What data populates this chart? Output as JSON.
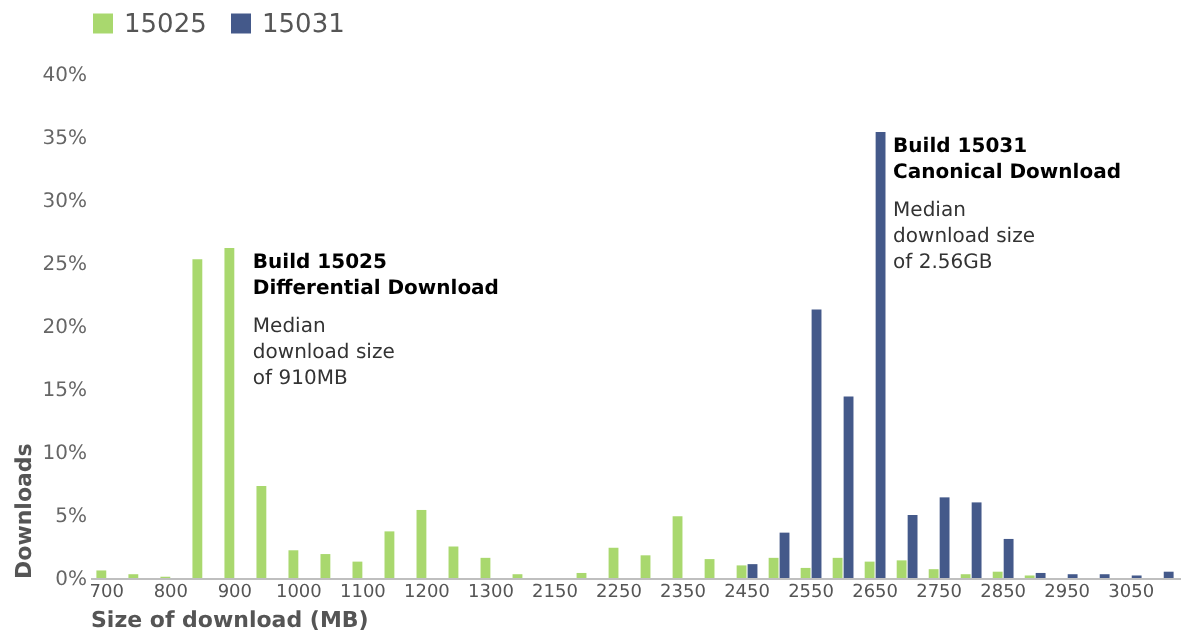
{
  "chart_data": {
    "type": "bar",
    "categories": [
      "700",
      null,
      "800",
      null,
      "900",
      null,
      "1000",
      null,
      "1100",
      null,
      "1200",
      null,
      "1300",
      null,
      "2150",
      null,
      "2250",
      null,
      "2350",
      null,
      "2450",
      null,
      "2550",
      null,
      "2650",
      null,
      "2750",
      null,
      "2850",
      null,
      "2950",
      null,
      "3050",
      null
    ],
    "series": [
      {
        "name": "15025",
        "color": "#a9d86e",
        "values": [
          0.6,
          0.3,
          0.1,
          25.3,
          26.2,
          7.3,
          2.2,
          1.9,
          1.3,
          3.7,
          5.4,
          2.5,
          1.6,
          0.3,
          0,
          0.4,
          2.4,
          1.8,
          4.9,
          1.5,
          1.0,
          1.6,
          0.8,
          1.6,
          1.3,
          1.4,
          0.7,
          0.3,
          0.5,
          0.2,
          0,
          0,
          0,
          0
        ]
      },
      {
        "name": "15031",
        "color": "#44598a",
        "values": [
          0,
          0,
          0,
          0,
          0,
          0,
          0,
          0,
          0,
          0,
          0,
          0,
          0,
          0,
          0,
          0,
          0,
          0,
          0,
          0,
          1.1,
          3.6,
          21.3,
          14.4,
          35.4,
          5.0,
          6.4,
          6.0,
          3.1,
          0.4,
          0.3,
          0.3,
          0.2,
          0.5
        ]
      }
    ],
    "ylim": [
      0,
      40
    ],
    "yticks": [
      {
        "value": 0,
        "label": "0%"
      },
      {
        "value": 5,
        "label": "5%"
      },
      {
        "value": 10,
        "label": "10%"
      },
      {
        "value": 15,
        "label": "15%"
      },
      {
        "value": 20,
        "label": "20%"
      },
      {
        "value": 25,
        "label": "25%"
      },
      {
        "value": 30,
        "label": "30%"
      },
      {
        "value": 35,
        "label": "35%"
      },
      {
        "value": 40,
        "label": "40%"
      }
    ],
    "xlabel": "Size of download (MB)",
    "ylabel": "Downloads",
    "annotations": [
      {
        "text": "Build 15025\nDifferential Download",
        "x": "900",
        "y": 26.2
      },
      {
        "text": "Median\ndownload size\nof 910MB",
        "x": "900",
        "y": 20.8
      },
      {
        "text": "Build 15031\nCanonical Download",
        "x": "2650",
        "y": 35.4
      },
      {
        "text": "Median\ndownload size\nof 2.56GB",
        "x": "2650",
        "y": 30.0
      }
    ],
    "legend": "top",
    "grid": false
  }
}
